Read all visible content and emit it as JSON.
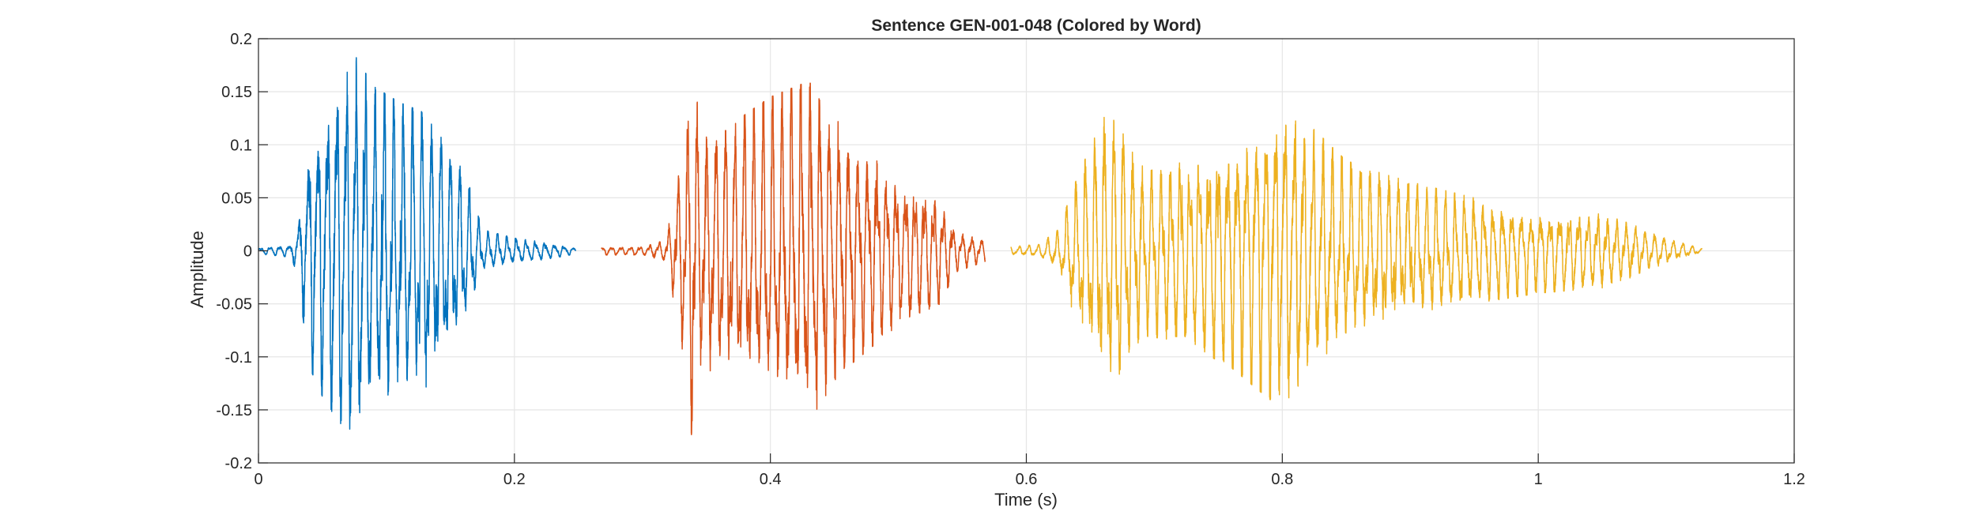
{
  "chart_data": {
    "type": "line",
    "title": "Sentence GEN-001-048 (Colored by Word)",
    "xlabel": "Time (s)",
    "ylabel": "Amplitude",
    "xlim": [
      0,
      1.2
    ],
    "ylim": [
      -0.2,
      0.2
    ],
    "xticks": [
      0,
      0.2,
      0.4,
      0.6,
      0.8,
      1,
      1.2
    ],
    "xtick_labels": [
      "0",
      "0.2",
      "0.4",
      "0.6",
      "0.8",
      "1",
      "1.2"
    ],
    "yticks": [
      -0.2,
      -0.15,
      -0.1,
      -0.05,
      0,
      0.05,
      0.1,
      0.15,
      0.2
    ],
    "ytick_labels": [
      "-0.2",
      "-0.15",
      "-0.1",
      "-0.05",
      "0",
      "0.05",
      "0.1",
      "0.15",
      "0.2"
    ],
    "grid": true,
    "series": [
      {
        "color": "#0072BD",
        "start": 0.0,
        "end": 0.248,
        "envelope": [
          [
            0.0,
            0.003
          ],
          [
            0.025,
            0.006
          ],
          [
            0.03,
            0.02
          ],
          [
            0.04,
            0.11
          ],
          [
            0.06,
            0.165
          ],
          [
            0.075,
            0.185
          ],
          [
            0.09,
            0.155
          ],
          [
            0.11,
            0.14
          ],
          [
            0.13,
            0.13
          ],
          [
            0.15,
            0.1
          ],
          [
            0.165,
            0.06
          ],
          [
            0.175,
            0.02
          ],
          [
            0.2,
            0.012
          ],
          [
            0.225,
            0.008
          ],
          [
            0.248,
            0.003
          ]
        ]
      },
      {
        "color": "#D95319",
        "start": 0.268,
        "end": 0.568,
        "envelope": [
          [
            0.268,
            0.004
          ],
          [
            0.3,
            0.004
          ],
          [
            0.318,
            0.01
          ],
          [
            0.325,
            0.05
          ],
          [
            0.335,
            0.12
          ],
          [
            0.34,
            0.2
          ],
          [
            0.345,
            0.11
          ],
          [
            0.37,
            0.12
          ],
          [
            0.4,
            0.145
          ],
          [
            0.43,
            0.16
          ],
          [
            0.46,
            0.11
          ],
          [
            0.5,
            0.07
          ],
          [
            0.53,
            0.055
          ],
          [
            0.545,
            0.02
          ],
          [
            0.568,
            0.01
          ]
        ]
      },
      {
        "color": "#EDB120",
        "start": 0.588,
        "end": 1.128,
        "envelope": [
          [
            0.588,
            0.004
          ],
          [
            0.61,
            0.006
          ],
          [
            0.625,
            0.02
          ],
          [
            0.64,
            0.07
          ],
          [
            0.66,
            0.125
          ],
          [
            0.67,
            0.135
          ],
          [
            0.69,
            0.08
          ],
          [
            0.72,
            0.085
          ],
          [
            0.76,
            0.11
          ],
          [
            0.79,
            0.14
          ],
          [
            0.8,
            0.145
          ],
          [
            0.82,
            0.12
          ],
          [
            0.85,
            0.085
          ],
          [
            0.9,
            0.065
          ],
          [
            0.95,
            0.05
          ],
          [
            1.0,
            0.04
          ],
          [
            1.05,
            0.035
          ],
          [
            1.08,
            0.022
          ],
          [
            1.1,
            0.012
          ],
          [
            1.128,
            0.002
          ]
        ]
      }
    ]
  }
}
